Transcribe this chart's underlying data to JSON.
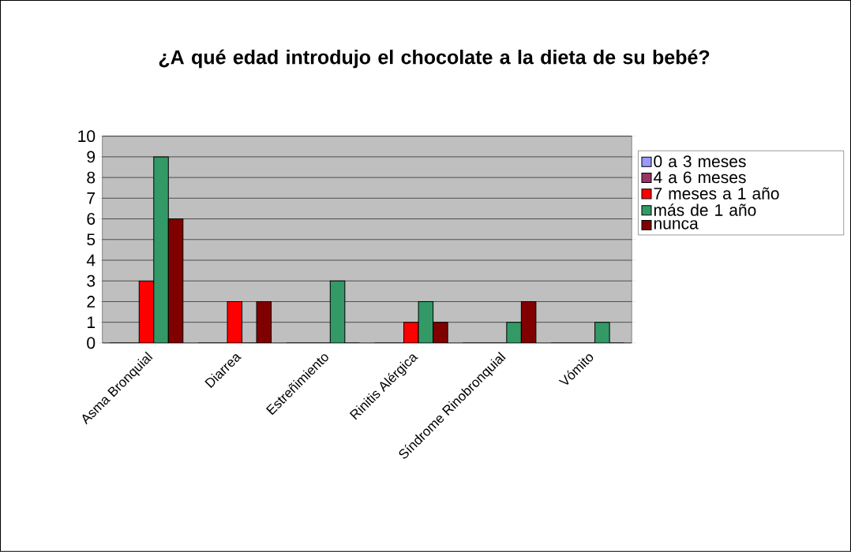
{
  "chart_data": {
    "type": "bar",
    "title": "¿A qué edad introdujo el chocolate a la dieta de su bebé?",
    "categories": [
      "Asma Bronquial",
      "Diarrea",
      "Estreñimiento",
      "Rinitis Alérgica",
      "Síndrome Rinobronquial",
      "Vómito"
    ],
    "series": [
      {
        "name": "0 a 3 meses",
        "color": "#9999ff",
        "values": [
          0,
          0,
          0,
          0,
          0,
          0
        ]
      },
      {
        "name": "4 a 6 meses",
        "color": "#993366",
        "values": [
          0,
          0,
          0,
          0,
          0,
          0
        ]
      },
      {
        "name": "7 meses a 1 año",
        "color": "#ff0000",
        "values": [
          3,
          2,
          0,
          1,
          0,
          0
        ]
      },
      {
        "name": "más de 1 año",
        "color": "#339966",
        "values": [
          9,
          0,
          3,
          2,
          1,
          1
        ]
      },
      {
        "name": "nunca",
        "color": "#800000",
        "values": [
          6,
          2,
          0,
          1,
          2,
          0
        ]
      }
    ],
    "ylim": [
      0,
      10
    ],
    "yticks": [
      0,
      1,
      2,
      3,
      4,
      5,
      6,
      7,
      8,
      9,
      10
    ],
    "grid": "y",
    "legend": "right"
  }
}
